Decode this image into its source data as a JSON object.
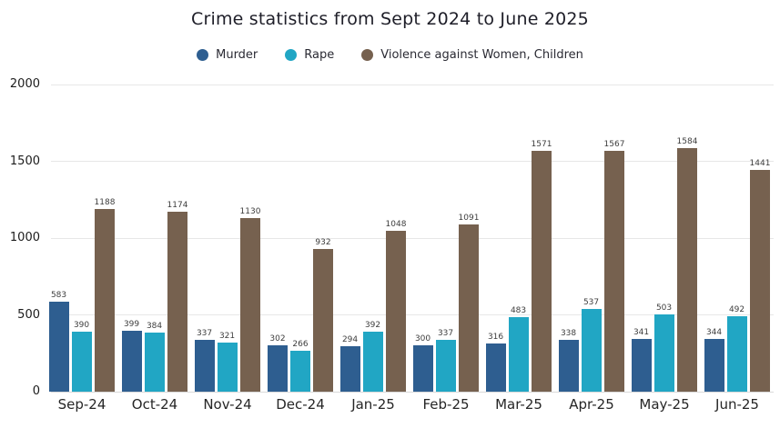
{
  "title": "Crime statistics from Sept 2024 to June 2025",
  "colors": {
    "murder": "#2e5e90",
    "rape": "#21a6c4",
    "violence_against_women_children": "#76614f",
    "gridline": "#e7e7e7",
    "title_text": "#1e1e28"
  },
  "legend": {
    "position": "top",
    "items": [
      {
        "label": "Murder",
        "color": "#2e5e90"
      },
      {
        "label": "Rape",
        "color": "#21a6c4"
      },
      {
        "label": "Violence against Women, Children",
        "color": "#76614f"
      }
    ]
  },
  "chart_data": {
    "type": "bar",
    "title": "Crime statistics from Sept 2024 to June 2025",
    "categories": [
      "Sep-24",
      "Oct-24",
      "Nov-24",
      "Dec-24",
      "Jan-25",
      "Feb-25",
      "Mar-25",
      "Apr-25",
      "May-25",
      "Jun-25"
    ],
    "series": [
      {
        "name": "Murder",
        "color": "#2e5e90",
        "values": [
          583,
          399,
          337,
          302,
          294,
          300,
          316,
          338,
          341,
          344
        ]
      },
      {
        "name": "Rape",
        "color": "#21a6c4",
        "values": [
          390,
          384,
          321,
          266,
          392,
          337,
          483,
          537,
          503,
          492
        ]
      },
      {
        "name": "Violence against Women, Children",
        "color": "#76614f",
        "values": [
          1188,
          1174,
          1130,
          932,
          1048,
          1091,
          1571,
          1567,
          1584,
          1441
        ]
      }
    ],
    "xlabel": "",
    "ylabel": "",
    "ylim": [
      0,
      2000
    ],
    "yticks": [
      0,
      500,
      1000,
      1500,
      2000
    ],
    "grid": true,
    "value_labels": true,
    "legend_position": "top"
  }
}
